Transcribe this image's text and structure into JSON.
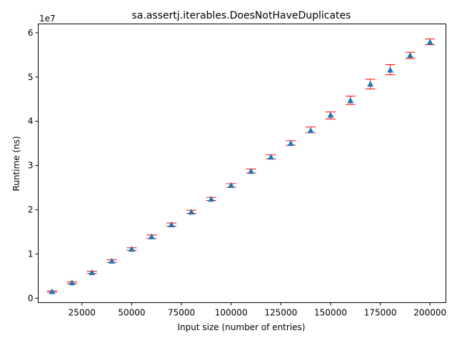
{
  "chart_data": {
    "type": "scatter",
    "title": "sa.assertj.iterables.DoesNotHaveDuplicates",
    "xlabel": "Input size (number of entries)",
    "ylabel": "Runtime (ns)",
    "y_offset_label": "1e7",
    "y_scale_factor": 10000000,
    "xlim": [
      3000,
      208000
    ],
    "ylim": [
      -1000000,
      62000000
    ],
    "x_ticks": [
      25000,
      50000,
      75000,
      100000,
      125000,
      150000,
      175000,
      200000
    ],
    "x_tick_labels": [
      "25000",
      "50000",
      "75000",
      "100000",
      "125000",
      "150000",
      "175000",
      "200000"
    ],
    "y_ticks": [
      0,
      10000000,
      20000000,
      30000000,
      40000000,
      50000000,
      60000000
    ],
    "y_tick_labels": [
      "0",
      "1",
      "2",
      "3",
      "4",
      "5",
      "6"
    ],
    "marker_color": "#1f77b4",
    "errorbar_color": "#ff0000",
    "grid": false,
    "points": [
      {
        "x": 10000,
        "y": 1500000,
        "low": 1350000,
        "high": 1650000
      },
      {
        "x": 20000,
        "y": 3500000,
        "low": 3300000,
        "high": 3700000
      },
      {
        "x": 30000,
        "y": 5800000,
        "low": 5600000,
        "high": 6100000
      },
      {
        "x": 40000,
        "y": 8400000,
        "low": 8100000,
        "high": 8700000
      },
      {
        "x": 50000,
        "y": 11100000,
        "low": 10800000,
        "high": 11400000
      },
      {
        "x": 60000,
        "y": 13900000,
        "low": 13500000,
        "high": 14300000
      },
      {
        "x": 70000,
        "y": 16600000,
        "low": 16300000,
        "high": 17000000
      },
      {
        "x": 80000,
        "y": 19500000,
        "low": 19200000,
        "high": 19900000
      },
      {
        "x": 90000,
        "y": 22400000,
        "low": 22100000,
        "high": 22800000
      },
      {
        "x": 100000,
        "y": 25500000,
        "low": 25100000,
        "high": 25900000
      },
      {
        "x": 110000,
        "y": 28700000,
        "low": 28300000,
        "high": 29200000
      },
      {
        "x": 120000,
        "y": 31900000,
        "low": 31500000,
        "high": 32400000
      },
      {
        "x": 130000,
        "y": 35000000,
        "low": 34600000,
        "high": 35600000
      },
      {
        "x": 140000,
        "y": 37900000,
        "low": 37400000,
        "high": 38700000
      },
      {
        "x": 150000,
        "y": 41400000,
        "low": 40500000,
        "high": 42100000
      },
      {
        "x": 160000,
        "y": 44700000,
        "low": 43800000,
        "high": 45700000
      },
      {
        "x": 170000,
        "y": 48400000,
        "low": 47300000,
        "high": 49500000
      },
      {
        "x": 180000,
        "y": 51600000,
        "low": 50500000,
        "high": 52800000
      },
      {
        "x": 190000,
        "y": 54900000,
        "low": 54200000,
        "high": 55600000
      },
      {
        "x": 200000,
        "y": 57900000,
        "low": 57300000,
        "high": 58600000
      }
    ]
  }
}
